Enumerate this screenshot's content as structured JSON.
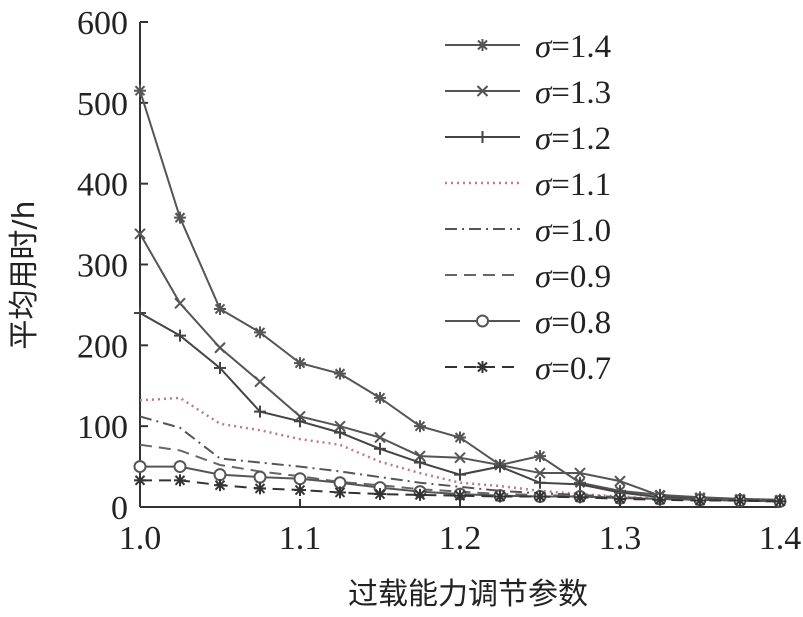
{
  "chart_data": {
    "type": "line",
    "title": "",
    "xlabel": "过载能力调节参数",
    "ylabel": "平均用时/h",
    "xlim": [
      1.0,
      1.4
    ],
    "ylim": [
      0,
      600
    ],
    "x_ticks": [
      "1.0",
      "1.1",
      "1.2",
      "1.3",
      "1.4"
    ],
    "y_ticks": [
      "0",
      "100",
      "200",
      "300",
      "400",
      "500",
      "600"
    ],
    "legend_position": "top-right",
    "x": [
      1.0,
      1.025,
      1.05,
      1.075,
      1.1,
      1.125,
      1.15,
      1.175,
      1.2,
      1.225,
      1.25,
      1.275,
      1.3,
      1.325,
      1.35,
      1.375,
      1.4
    ],
    "series": [
      {
        "name": "σ=1.4",
        "sigma": "σ",
        "eq": "=1.4",
        "style": "solid",
        "marker": "asterisk",
        "color": "#555555",
        "values": [
          515,
          358,
          245,
          216,
          178,
          165,
          135,
          100,
          86,
          52,
          63,
          30,
          20,
          15,
          12,
          10,
          9
        ]
      },
      {
        "name": "σ=1.3",
        "sigma": "σ",
        "eq": "=1.3",
        "style": "solid",
        "marker": "x",
        "color": "#555555",
        "values": [
          338,
          252,
          197,
          155,
          112,
          100,
          86,
          63,
          61,
          52,
          42,
          42,
          32,
          14,
          11,
          9,
          8
        ]
      },
      {
        "name": "σ=1.2",
        "sigma": "σ",
        "eq": "=1.2",
        "style": "solid",
        "marker": "plus",
        "color": "#444444",
        "values": [
          240,
          212,
          172,
          118,
          106,
          92,
          72,
          55,
          40,
          50,
          30,
          28,
          18,
          12,
          10,
          8,
          8
        ]
      },
      {
        "name": "σ=1.1",
        "sigma": "σ",
        "eq": "=1.1",
        "style": "dotted",
        "marker": "none",
        "color": "#c07890",
        "values": [
          132,
          135,
          103,
          95,
          84,
          77,
          56,
          42,
          30,
          26,
          20,
          16,
          13,
          10,
          9,
          8,
          7
        ]
      },
      {
        "name": "σ=1.0",
        "sigma": "σ",
        "eq": "=1.0",
        "style": "dashdot",
        "marker": "none",
        "color": "#555555",
        "values": [
          112,
          98,
          60,
          55,
          50,
          44,
          37,
          30,
          25,
          20,
          17,
          15,
          12,
          10,
          9,
          8,
          7
        ]
      },
      {
        "name": "σ=0.9",
        "sigma": "σ",
        "eq": "=0.9",
        "style": "dashed",
        "marker": "none",
        "color": "#666666",
        "values": [
          77,
          70,
          52,
          44,
          38,
          31,
          27,
          22,
          19,
          16,
          15,
          13,
          12,
          10,
          9,
          8,
          7
        ]
      },
      {
        "name": "σ=0.8",
        "sigma": "σ",
        "eq": "=0.8",
        "style": "solid",
        "marker": "circle",
        "color": "#555555",
        "values": [
          50,
          50,
          40,
          37,
          35,
          30,
          24,
          19,
          16,
          14,
          13,
          13,
          11,
          10,
          9,
          8,
          7
        ]
      },
      {
        "name": "σ=0.7",
        "sigma": "σ",
        "eq": "=0.7",
        "style": "dashed",
        "marker": "asterisk",
        "color": "#333333",
        "values": [
          33,
          33,
          27,
          23,
          21,
          18,
          16,
          15,
          14,
          13,
          13,
          12,
          10,
          9,
          8,
          8,
          7
        ]
      }
    ]
  }
}
